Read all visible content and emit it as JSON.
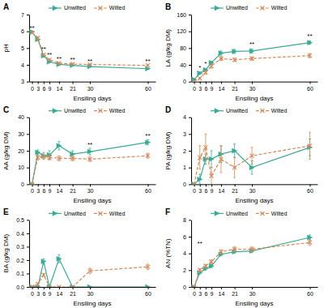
{
  "chart_data": [
    {
      "type": "line",
      "title": "A",
      "xlabel": "Ensiling days",
      "ylabel": "pH",
      "x": [
        0,
        3,
        6,
        9,
        14,
        21,
        30,
        60
      ],
      "xlim": [
        -1.5,
        64
      ],
      "xticks": [
        0,
        3,
        6,
        9,
        14,
        21,
        30,
        60
      ],
      "ylim": [
        3,
        7
      ],
      "yticks": [
        3,
        4,
        5,
        6,
        7
      ],
      "legend": "top",
      "series": [
        {
          "name": "Unwilted",
          "color": "#3aaa96",
          "marker": "triangle-right",
          "line_style": "solid",
          "values": [
            5.97,
            5.52,
            4.55,
            4.18,
            4.03,
            3.97,
            3.9,
            3.77
          ],
          "errors": [
            0.03,
            0.06,
            0.08,
            0.05,
            0.04,
            0.03,
            0.03,
            0.03
          ]
        },
        {
          "name": "Wilted",
          "color": "#d4895a",
          "marker": "x",
          "line_style": "dashed",
          "values": [
            5.92,
            5.6,
            4.6,
            4.3,
            4.1,
            4.05,
            4.02,
            3.97
          ],
          "errors": [
            0.03,
            0.08,
            0.06,
            0.05,
            0.04,
            0.04,
            0.03,
            0.04
          ]
        }
      ],
      "annotations": [
        {
          "x": 0,
          "y": 6.08,
          "text": "**"
        },
        {
          "x": 6,
          "y": 4.8,
          "text": "**"
        },
        {
          "x": 9,
          "y": 4.5,
          "text": "**"
        },
        {
          "x": 14,
          "y": 4.22,
          "text": "**"
        },
        {
          "x": 21,
          "y": 4.18,
          "text": "**"
        },
        {
          "x": 30,
          "y": 4.12,
          "text": "**"
        },
        {
          "x": 60,
          "y": 4.12,
          "text": "**"
        }
      ]
    },
    {
      "type": "line",
      "title": "B",
      "xlabel": "Ensiling days",
      "ylabel": "LA (g/kg DM)",
      "x": [
        0,
        3,
        6,
        9,
        14,
        21,
        30,
        60
      ],
      "xlim": [
        -1.5,
        64
      ],
      "xticks": [
        0,
        3,
        6,
        9,
        14,
        21,
        30,
        60
      ],
      "ylim": [
        0,
        160
      ],
      "yticks": [
        0,
        40,
        80,
        120,
        160
      ],
      "legend": "top",
      "series": [
        {
          "name": "Unwilted",
          "color": "#3aaa96",
          "marker": "triangle-right",
          "line_style": "solid",
          "values": [
            5.0,
            20.0,
            28.0,
            45.0,
            68.0,
            72.0,
            73.0,
            93.0
          ],
          "errors": [
            1.0,
            3.0,
            3.0,
            4.0,
            5.0,
            5.0,
            5.0,
            4.0
          ]
        },
        {
          "name": "Wilted",
          "color": "#d4895a",
          "marker": "x",
          "line_style": "dashed",
          "values": [
            0.5,
            8.0,
            22.0,
            37.0,
            55.0,
            52.0,
            55.0,
            62.0
          ],
          "errors": [
            0.3,
            2.0,
            4.0,
            5.0,
            5.0,
            4.0,
            4.0,
            5.0
          ]
        }
      ],
      "annotations": [
        {
          "x": 3,
          "y": 28,
          "text": "*"
        },
        {
          "x": 6,
          "y": 38,
          "text": "*"
        },
        {
          "x": 30,
          "y": 84,
          "text": "**"
        },
        {
          "x": 60,
          "y": 104,
          "text": "**"
        }
      ]
    },
    {
      "type": "line",
      "title": "C",
      "xlabel": "Ensiling days",
      "ylabel": "AA (g/kg DM)",
      "x": [
        0,
        3,
        6,
        9,
        14,
        21,
        30,
        60
      ],
      "xlim": [
        -1.5,
        64
      ],
      "xticks": [
        0,
        3,
        6,
        9,
        14,
        21,
        30,
        60
      ],
      "ylim": [
        0,
        40
      ],
      "yticks": [
        0,
        10,
        20,
        30,
        40
      ],
      "legend": "top",
      "series": [
        {
          "name": "Unwilted",
          "color": "#3aaa96",
          "marker": "triangle-right",
          "line_style": "solid",
          "values": [
            0.0,
            19.0,
            17.0,
            17.5,
            23.0,
            18.0,
            19.5,
            25.0
          ],
          "errors": [
            0.0,
            1.5,
            2.0,
            2.5,
            2.5,
            2.0,
            2.0,
            1.5
          ]
        },
        {
          "name": "Wilted",
          "color": "#d4895a",
          "marker": "x",
          "line_style": "dashed",
          "values": [
            0.0,
            16.0,
            16.5,
            16.0,
            15.5,
            15.5,
            15.0,
            17.0
          ],
          "errors": [
            0.0,
            1.5,
            1.5,
            1.5,
            1.5,
            1.5,
            1.5,
            1.5
          ]
        }
      ],
      "annotations": [
        {
          "x": 30,
          "y": 22.5,
          "text": "**"
        },
        {
          "x": 60,
          "y": 27.5,
          "text": "**"
        }
      ]
    },
    {
      "type": "line",
      "title": "D",
      "xlabel": "Ensiling days",
      "ylabel": "PA (g/kg DM)",
      "x": [
        0,
        3,
        6,
        9,
        14,
        21,
        30,
        60
      ],
      "xlim": [
        -1.5,
        64
      ],
      "xticks": [
        0,
        3,
        6,
        9,
        14,
        21,
        30,
        60
      ],
      "ylim": [
        0,
        4
      ],
      "yticks": [
        0,
        1,
        2,
        3,
        4
      ],
      "legend": "top",
      "series": [
        {
          "name": "Unwilted",
          "color": "#3aaa96",
          "marker": "triangle-right",
          "line_style": "solid",
          "values": [
            0.0,
            0.3,
            1.5,
            1.5,
            1.8,
            2.0,
            1.0,
            2.2
          ],
          "errors": [
            0.0,
            0.3,
            0.3,
            0.5,
            0.5,
            0.4,
            0.4,
            0.5
          ]
        },
        {
          "name": "Wilted",
          "color": "#d4895a",
          "marker": "x",
          "line_style": "dashed",
          "values": [
            0.0,
            1.6,
            2.2,
            0.5,
            1.5,
            1.0,
            1.7,
            2.3
          ],
          "errors": [
            0.0,
            0.7,
            0.8,
            0.5,
            0.8,
            0.6,
            0.5,
            0.8
          ]
        }
      ]
    },
    {
      "type": "line",
      "title": "E",
      "xlabel": "Ensiling days",
      "ylabel": "BA (g/kg DM)",
      "x": [
        0,
        3,
        6,
        9,
        14,
        21,
        30,
        60
      ],
      "xlim": [
        -1.5,
        64
      ],
      "xticks": [
        0,
        3,
        6,
        9,
        14,
        21,
        30,
        60
      ],
      "ylim": [
        0.0,
        0.5
      ],
      "yticks": [
        {
          "value": 0.0,
          "label": "0.0"
        },
        0.1,
        0.2,
        0.3,
        0.4,
        0.5
      ],
      "legend": "top",
      "series": [
        {
          "name": "Unwilted",
          "color": "#3aaa96",
          "marker": "triangle-right",
          "line_style": "solid",
          "values": [
            0.0,
            0.0,
            0.19,
            0.0,
            0.21,
            0.0,
            0.0,
            0.0
          ],
          "errors": [
            0.0,
            0.0,
            0.02,
            0.0,
            0.03,
            0.0,
            0.0,
            0.0
          ]
        },
        {
          "name": "Wilted",
          "color": "#d4895a",
          "marker": "x",
          "line_style": "dashed",
          "values": [
            0.0,
            0.02,
            0.09,
            0.0,
            0.0,
            0.0,
            0.12,
            0.15
          ],
          "errors": [
            0.0,
            0.01,
            0.01,
            0.0,
            0.0,
            0.0,
            0.02,
            0.02
          ]
        }
      ]
    },
    {
      "type": "line",
      "title": "F",
      "xlabel": "Ensiling days",
      "ylabel": "AN (%TN)",
      "x": [
        0,
        3,
        6,
        9,
        14,
        21,
        30,
        60
      ],
      "xlim": [
        -1.5,
        64
      ],
      "xticks": [
        0,
        3,
        6,
        9,
        14,
        21,
        30,
        60
      ],
      "ylim": [
        0,
        8
      ],
      "yticks": [
        0,
        2,
        4,
        6,
        8
      ],
      "legend": "top",
      "series": [
        {
          "name": "Unwilted",
          "color": "#3aaa96",
          "marker": "triangle-right",
          "line_style": "solid",
          "values": [
            0.0,
            1.7,
            2.2,
            2.5,
            3.9,
            4.2,
            4.3,
            5.9
          ],
          "errors": [
            0.0,
            0.15,
            0.2,
            0.2,
            0.2,
            0.2,
            0.2,
            0.3
          ]
        },
        {
          "name": "Wilted",
          "color": "#d4895a",
          "marker": "x",
          "line_style": "dashed",
          "values": [
            0.0,
            2.0,
            2.5,
            3.0,
            4.2,
            4.5,
            4.5,
            5.3
          ],
          "errors": [
            0.0,
            0.2,
            0.2,
            0.25,
            0.25,
            0.3,
            0.3,
            0.35
          ]
        }
      ],
      "annotations": [
        {
          "x": 3,
          "y": 4.9,
          "text": "**"
        }
      ]
    }
  ]
}
